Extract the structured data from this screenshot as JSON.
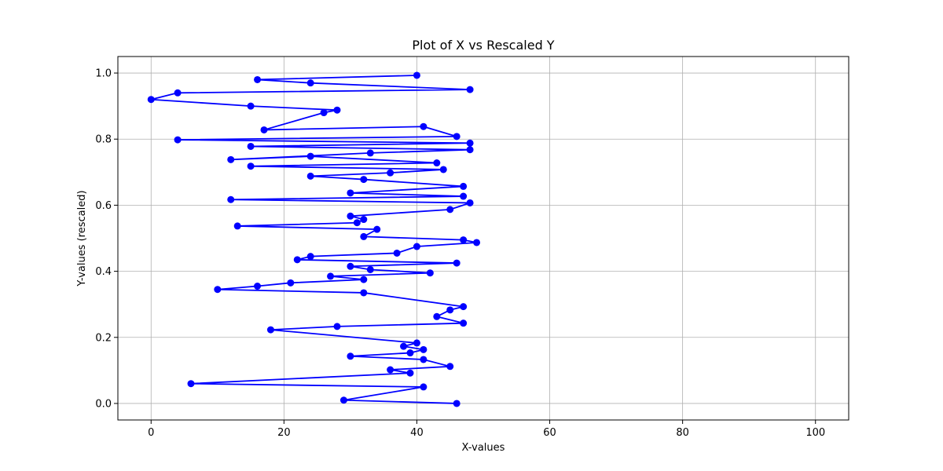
{
  "chart_data": {
    "type": "line",
    "title": "Plot of X vs Rescaled Y",
    "xlabel": "X-values",
    "ylabel": "Y-values (rescaled)",
    "xlim": [
      -5,
      105
    ],
    "ylim": [
      -0.05,
      1.05
    ],
    "x_ticks": [
      0,
      20,
      40,
      60,
      80,
      100
    ],
    "x_tick_labels": [
      "0",
      "20",
      "40",
      "60",
      "80",
      "100"
    ],
    "y_ticks": [
      0.0,
      0.2,
      0.4,
      0.6,
      0.8,
      1.0
    ],
    "y_tick_labels": [
      "0.0",
      "0.2",
      "0.4",
      "0.6",
      "0.8",
      "1.0"
    ],
    "grid": true,
    "series": [
      {
        "color": "#0000ff",
        "marker": "circle",
        "x": [
          40,
          16,
          24,
          48,
          4,
          0,
          15,
          28,
          26,
          17,
          41,
          46,
          4,
          48,
          15,
          48,
          33,
          12,
          24,
          43,
          15,
          44,
          36,
          24,
          32,
          47,
          30,
          47,
          12,
          48,
          45,
          30,
          32,
          31,
          13,
          34,
          32,
          47,
          49,
          40,
          37,
          24,
          22,
          46,
          30,
          33,
          42,
          27,
          32,
          21,
          16,
          10,
          32,
          47,
          45,
          43,
          47,
          28,
          18,
          40,
          38,
          41,
          39,
          30,
          41,
          45,
          36,
          39,
          6,
          41,
          29,
          46
        ],
        "y": [
          0.993,
          0.98,
          0.97,
          0.95,
          0.94,
          0.92,
          0.9,
          0.888,
          0.88,
          0.828,
          0.838,
          0.808,
          0.798,
          0.788,
          0.778,
          0.768,
          0.758,
          0.738,
          0.748,
          0.728,
          0.718,
          0.708,
          0.698,
          0.688,
          0.678,
          0.657,
          0.637,
          0.627,
          0.617,
          0.607,
          0.587,
          0.567,
          0.557,
          0.547,
          0.537,
          0.527,
          0.505,
          0.495,
          0.487,
          0.475,
          0.455,
          0.445,
          0.435,
          0.425,
          0.415,
          0.405,
          0.395,
          0.385,
          0.375,
          0.365,
          0.355,
          0.345,
          0.335,
          0.293,
          0.283,
          0.263,
          0.243,
          0.233,
          0.223,
          0.183,
          0.173,
          0.163,
          0.153,
          0.143,
          0.133,
          0.112,
          0.102,
          0.092,
          0.06,
          0.05,
          0.01,
          0.0
        ]
      }
    ]
  }
}
